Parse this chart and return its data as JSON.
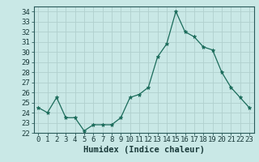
{
  "x": [
    0,
    1,
    2,
    3,
    4,
    5,
    6,
    7,
    8,
    9,
    10,
    11,
    12,
    13,
    14,
    15,
    16,
    17,
    18,
    19,
    20,
    21,
    22,
    23
  ],
  "y": [
    24.5,
    24.0,
    25.5,
    23.5,
    23.5,
    22.2,
    22.8,
    22.8,
    22.8,
    23.5,
    25.5,
    25.8,
    26.5,
    29.5,
    30.8,
    34.0,
    32.0,
    31.5,
    30.5,
    30.2,
    28.0,
    26.5,
    25.5,
    24.5
  ],
  "xlabel": "Humidex (Indice chaleur)",
  "bg_color": "#c9e8e6",
  "grid_color": "#b0d0ce",
  "line_color": "#1a6b5a",
  "marker_color": "#1a6b5a",
  "ylim": [
    22,
    34.5
  ],
  "xlim": [
    -0.5,
    23.5
  ],
  "yticks": [
    22,
    23,
    24,
    25,
    26,
    27,
    28,
    29,
    30,
    31,
    32,
    33,
    34
  ],
  "xticks": [
    0,
    1,
    2,
    3,
    4,
    5,
    6,
    7,
    8,
    9,
    10,
    11,
    12,
    13,
    14,
    15,
    16,
    17,
    18,
    19,
    20,
    21,
    22,
    23
  ],
  "tick_label_fontsize": 6.5,
  "xlabel_fontsize": 7.5
}
